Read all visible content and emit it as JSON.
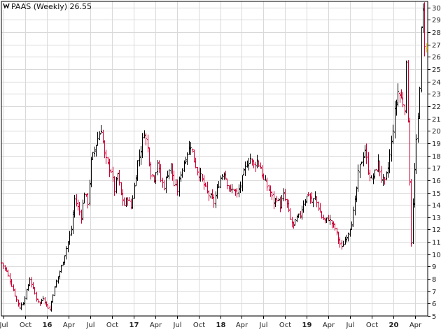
{
  "chart_data": {
    "type": "candlestick",
    "symbol": "PAAS",
    "period": "Weekly",
    "title": "PAAS (Weekly) 26.55",
    "last_value": "26.55",
    "ylim": [
      5,
      30.5
    ],
    "y_ticks": [
      5,
      6,
      7,
      8,
      9,
      10,
      11,
      12,
      13,
      14,
      15,
      16,
      17,
      18,
      19,
      20,
      21,
      22,
      23,
      24,
      25,
      26,
      27,
      28,
      29,
      30
    ],
    "x_range": [
      "2015-06-22",
      "2020-05-25"
    ],
    "x_ticks": [
      {
        "date": "2015-07-01",
        "label": "Jul",
        "year": false
      },
      {
        "date": "2015-10-01",
        "label": "Oct",
        "year": false
      },
      {
        "date": "2016-01-01",
        "label": "16",
        "year": true
      },
      {
        "date": "2016-04-01",
        "label": "Apr",
        "year": false
      },
      {
        "date": "2016-07-01",
        "label": "Jul",
        "year": false
      },
      {
        "date": "2016-10-01",
        "label": "Oct",
        "year": false
      },
      {
        "date": "2017-01-01",
        "label": "17",
        "year": true
      },
      {
        "date": "2017-04-01",
        "label": "Apr",
        "year": false
      },
      {
        "date": "2017-07-01",
        "label": "Jul",
        "year": false
      },
      {
        "date": "2017-10-01",
        "label": "Oct",
        "year": false
      },
      {
        "date": "2018-01-01",
        "label": "18",
        "year": true
      },
      {
        "date": "2018-04-01",
        "label": "Apr",
        "year": false
      },
      {
        "date": "2018-07-01",
        "label": "Jul",
        "year": false
      },
      {
        "date": "2018-10-01",
        "label": "Oct",
        "year": false
      },
      {
        "date": "2019-01-01",
        "label": "19",
        "year": true
      },
      {
        "date": "2019-04-01",
        "label": "Apr",
        "year": false
      },
      {
        "date": "2019-07-01",
        "label": "Jul",
        "year": false
      },
      {
        "date": "2019-10-01",
        "label": "Oct",
        "year": false
      },
      {
        "date": "2020-01-01",
        "label": "20",
        "year": true
      },
      {
        "date": "2020-04-01",
        "label": "Apr",
        "year": false
      }
    ],
    "grid": true,
    "colors": {
      "up": "#000000",
      "down": "#cc0033",
      "last": "#e8c800",
      "grid": "#d9d9d9"
    },
    "close_path": [
      [
        "2015-06-22",
        9.3
      ],
      [
        "2015-07-13",
        8.6
      ],
      [
        "2015-08-03",
        7.5
      ],
      [
        "2015-08-24",
        6.3
      ],
      [
        "2015-09-07",
        5.7
      ],
      [
        "2015-09-21",
        6.1
      ],
      [
        "2015-10-05",
        7.0
      ],
      [
        "2015-10-19",
        8.0
      ],
      [
        "2015-11-02",
        7.2
      ],
      [
        "2015-11-16",
        6.4
      ],
      [
        "2015-11-30",
        6.0
      ],
      [
        "2015-12-14",
        6.5
      ],
      [
        "2015-12-28",
        5.9
      ],
      [
        "2016-01-11",
        5.5
      ],
      [
        "2016-01-25",
        6.8
      ],
      [
        "2016-02-08",
        7.8
      ],
      [
        "2016-02-29",
        9.0
      ],
      [
        "2016-03-21",
        10.5
      ],
      [
        "2016-04-11",
        12.0
      ],
      [
        "2016-04-25",
        14.5
      ],
      [
        "2016-05-09",
        13.8
      ],
      [
        "2016-05-23",
        13.1
      ],
      [
        "2016-06-06",
        15.0
      ],
      [
        "2016-06-20",
        14.2
      ],
      [
        "2016-07-04",
        17.5
      ],
      [
        "2016-07-18",
        18.5
      ],
      [
        "2016-08-01",
        19.4
      ],
      [
        "2016-08-15",
        20.2
      ],
      [
        "2016-08-29",
        18.0
      ],
      [
        "2016-09-12",
        17.2
      ],
      [
        "2016-09-26",
        16.8
      ],
      [
        "2016-10-10",
        15.2
      ],
      [
        "2016-10-24",
        16.5
      ],
      [
        "2016-11-07",
        14.8
      ],
      [
        "2016-11-21",
        14.0
      ],
      [
        "2016-12-05",
        14.6
      ],
      [
        "2016-12-19",
        13.8
      ],
      [
        "2017-01-02",
        15.5
      ],
      [
        "2017-01-16",
        17.5
      ],
      [
        "2017-01-30",
        18.5
      ],
      [
        "2017-02-13",
        20.0
      ],
      [
        "2017-02-27",
        18.6
      ],
      [
        "2017-03-13",
        16.6
      ],
      [
        "2017-03-27",
        16.2
      ],
      [
        "2017-04-10",
        17.5
      ],
      [
        "2017-04-24",
        16.0
      ],
      [
        "2017-05-08",
        15.5
      ],
      [
        "2017-05-22",
        16.6
      ],
      [
        "2017-06-05",
        17.2
      ],
      [
        "2017-06-19",
        15.6
      ],
      [
        "2017-07-03",
        15.2
      ],
      [
        "2017-07-17",
        16.6
      ],
      [
        "2017-07-31",
        17.4
      ],
      [
        "2017-08-14",
        18.3
      ],
      [
        "2017-08-28",
        18.9
      ],
      [
        "2017-09-11",
        17.6
      ],
      [
        "2017-09-25",
        16.8
      ],
      [
        "2017-10-09",
        16.3
      ],
      [
        "2017-10-23",
        15.6
      ],
      [
        "2017-11-06",
        15.0
      ],
      [
        "2017-11-20",
        14.6
      ],
      [
        "2017-12-04",
        14.2
      ],
      [
        "2017-12-18",
        15.2
      ],
      [
        "2018-01-01",
        16.2
      ],
      [
        "2018-01-15",
        16.7
      ],
      [
        "2018-01-29",
        15.8
      ],
      [
        "2018-02-12",
        15.1
      ],
      [
        "2018-02-26",
        15.3
      ],
      [
        "2018-03-12",
        14.8
      ],
      [
        "2018-03-26",
        15.6
      ],
      [
        "2018-04-09",
        16.6
      ],
      [
        "2018-04-23",
        17.4
      ],
      [
        "2018-05-07",
        17.8
      ],
      [
        "2018-05-21",
        17.2
      ],
      [
        "2018-06-04",
        17.6
      ],
      [
        "2018-06-18",
        17.0
      ],
      [
        "2018-07-02",
        16.0
      ],
      [
        "2018-07-16",
        15.5
      ],
      [
        "2018-07-30",
        15.0
      ],
      [
        "2018-08-13",
        14.2
      ],
      [
        "2018-08-27",
        14.6
      ],
      [
        "2018-09-10",
        13.9
      ],
      [
        "2018-09-24",
        14.8
      ],
      [
        "2018-10-08",
        14.0
      ],
      [
        "2018-10-22",
        12.8
      ],
      [
        "2018-11-05",
        12.3
      ],
      [
        "2018-11-19",
        12.9
      ],
      [
        "2018-12-03",
        13.2
      ],
      [
        "2018-12-17",
        14.2
      ],
      [
        "2019-01-07",
        14.9
      ],
      [
        "2019-01-21",
        14.2
      ],
      [
        "2019-02-04",
        14.6
      ],
      [
        "2019-02-18",
        13.8
      ],
      [
        "2019-03-04",
        13.0
      ],
      [
        "2019-03-18",
        12.7
      ],
      [
        "2019-04-01",
        12.9
      ],
      [
        "2019-04-15",
        12.5
      ],
      [
        "2019-04-29",
        12.1
      ],
      [
        "2019-05-13",
        11.2
      ],
      [
        "2019-05-27",
        10.5
      ],
      [
        "2019-06-10",
        11.2
      ],
      [
        "2019-06-24",
        11.8
      ],
      [
        "2019-07-08",
        12.6
      ],
      [
        "2019-07-22",
        14.2
      ],
      [
        "2019-08-05",
        16.5
      ],
      [
        "2019-08-19",
        17.6
      ],
      [
        "2019-09-02",
        18.5
      ],
      [
        "2019-09-16",
        16.8
      ],
      [
        "2019-09-30",
        16.0
      ],
      [
        "2019-10-14",
        16.6
      ],
      [
        "2019-10-28",
        17.4
      ],
      [
        "2019-11-11",
        16.2
      ],
      [
        "2019-11-25",
        15.8
      ],
      [
        "2019-12-09",
        17.0
      ],
      [
        "2019-12-23",
        19.0
      ],
      [
        "2020-01-06",
        21.5
      ],
      [
        "2020-01-20",
        23.2
      ],
      [
        "2020-02-03",
        22.6
      ],
      [
        "2020-02-17",
        22.0
      ],
      [
        "2020-02-24",
        25.2
      ],
      [
        "2020-03-02",
        21.0
      ],
      [
        "2020-03-09",
        16.0
      ],
      [
        "2020-03-16",
        11.0
      ],
      [
        "2020-03-23",
        14.0
      ],
      [
        "2020-03-30",
        16.8
      ],
      [
        "2020-04-06",
        19.0
      ],
      [
        "2020-04-13",
        21.0
      ],
      [
        "2020-04-20",
        23.8
      ],
      [
        "2020-04-27",
        28.0
      ],
      [
        "2020-05-04",
        29.6
      ],
      [
        "2020-05-11",
        27.2
      ],
      [
        "2020-05-18",
        26.55
      ]
    ]
  }
}
